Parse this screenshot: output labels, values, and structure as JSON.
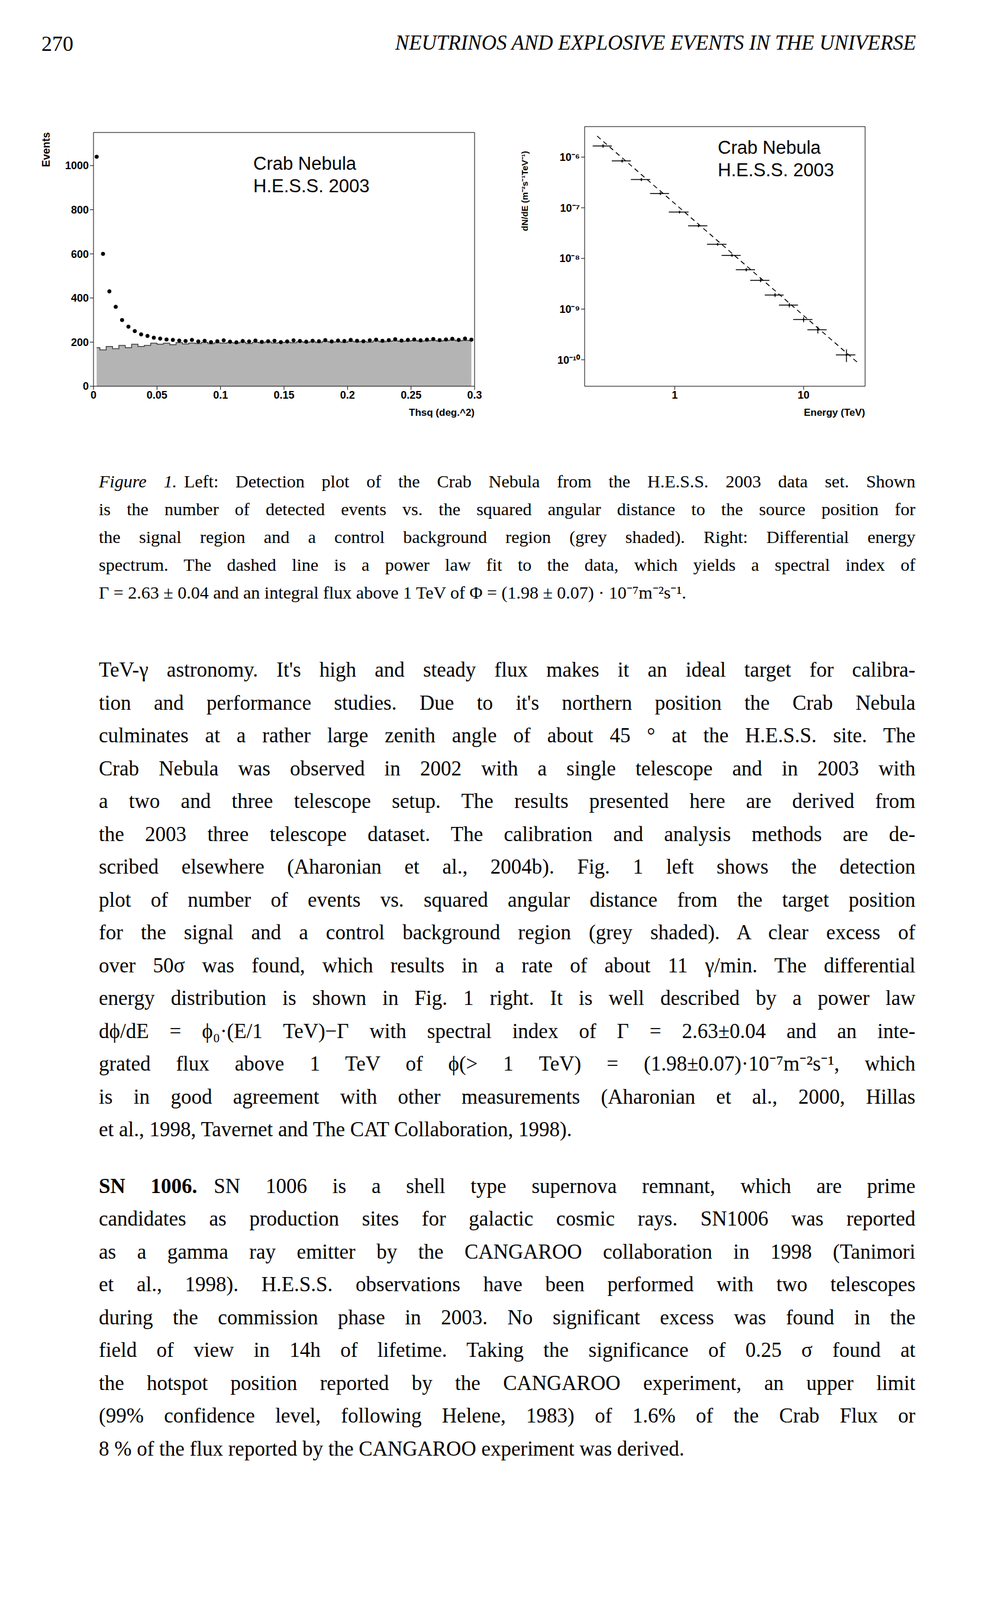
{
  "header": {
    "page": "270",
    "title": "NEUTRINOS AND EXPLOSIVE EVENTS IN THE UNIVERSE"
  },
  "chart_data": [
    {
      "type": "scatter",
      "title": "Crab Nebula",
      "subtitle": "H.E.S.S. 2003",
      "x_label": "Thsq (deg.^2)",
      "y_label": "Events",
      "x": [
        0.0025,
        0.0075,
        0.0125,
        0.0175,
        0.0225,
        0.0275,
        0.0325,
        0.0375,
        0.0425,
        0.0475,
        0.0525,
        0.0575,
        0.0625,
        0.0675,
        0.0725,
        0.0775,
        0.0825,
        0.0875,
        0.0925,
        0.0975,
        0.1025,
        0.1075,
        0.1125,
        0.1175,
        0.1225,
        0.1275,
        0.1325,
        0.1375,
        0.1425,
        0.1475,
        0.1525,
        0.1575,
        0.1625,
        0.1675,
        0.1725,
        0.1775,
        0.1825,
        0.1875,
        0.1925,
        0.1975,
        0.2025,
        0.2075,
        0.2125,
        0.2175,
        0.2225,
        0.2275,
        0.2325,
        0.2375,
        0.2425,
        0.2475,
        0.2525,
        0.2575,
        0.2625,
        0.2675,
        0.2725,
        0.2775,
        0.2825,
        0.2875,
        0.2925,
        0.2975
      ],
      "series": [
        {
          "type": "scatter",
          "marker": "circle",
          "color": "#000000",
          "values": [
            1040,
            600,
            430,
            360,
            300,
            270,
            250,
            235,
            228,
            220,
            216,
            212,
            210,
            207,
            205,
            210,
            203,
            206,
            200,
            204,
            208,
            202,
            199,
            205,
            203,
            207,
            201,
            204,
            206,
            200,
            203,
            208,
            205,
            202,
            206,
            204,
            209,
            203,
            207,
            205,
            210,
            206,
            204,
            208,
            211,
            206,
            209,
            213,
            207,
            210,
            212,
            208,
            211,
            214,
            209,
            212,
            215,
            210,
            216,
            211
          ]
        },
        {
          "type": "area",
          "line_style": "step",
          "color": "#b4b4b4",
          "values": [
            175,
            165,
            180,
            170,
            185,
            175,
            190,
            180,
            185,
            195,
            190,
            195,
            188,
            198,
            192,
            196,
            194,
            199,
            193,
            197,
            195,
            198,
            196,
            200,
            194,
            199,
            197,
            201,
            196,
            198,
            200,
            197,
            202,
            199,
            201,
            198,
            203,
            200,
            202,
            199,
            204,
            201,
            203,
            200,
            205,
            202,
            204,
            206,
            203,
            205,
            207,
            204,
            206,
            208,
            205,
            207,
            209,
            206,
            208,
            207
          ]
        }
      ],
      "xlim": [
        0,
        0.3
      ],
      "xticks": [
        0,
        0.05,
        0.1,
        0.15,
        0.2,
        0.25,
        0.3
      ],
      "ylim": [
        0,
        1150
      ],
      "yticks": [
        0,
        200,
        400,
        600,
        800,
        1000
      ]
    },
    {
      "type": "scatter",
      "log": true,
      "title": "Crab Nebula",
      "subtitle": "H.E.S.S. 2003",
      "x_label": "Energy (TeV)",
      "y_label": "dN/dE (m⁻²s⁻¹TeV⁻¹)",
      "x": [
        0.278,
        0.391,
        0.551,
        0.774,
        1.09,
        1.53,
        2.15,
        2.78,
        3.59,
        4.64,
        6.0,
        7.74,
        10.0,
        12.9,
        21.5
      ],
      "series": [
        {
          "type": "scatter",
          "marker": "cross",
          "color": "#000000",
          "values": [
            1.66e-06,
            8.4e-07,
            3.6e-07,
            1.9e-07,
            8.2e-08,
            4.4e-08,
            1.9e-08,
            1.15e-08,
            6e-09,
            3.7e-09,
            1.9e-09,
            1.2e-09,
            6.2e-10,
            3.9e-10,
            1.25e-10
          ],
          "x_err": [
            0.047,
            0.066,
            0.094,
            0.13,
            0.19,
            0.26,
            0.37,
            0.47,
            0.61,
            0.79,
            1.0,
            1.3,
            1.7,
            2.2,
            3.7
          ],
          "y_err": [
            1.3e-07,
            6e-08,
            2.5e-08,
            1.2e-08,
            5e-09,
            2.8e-09,
            1.2e-09,
            8e-10,
            4.5e-10,
            3e-10,
            1.7e-10,
            1.2e-10,
            7e-11,
            6e-11,
            3.5e-11
          ]
        },
        {
          "type": "line",
          "line_style": "dashed",
          "color": "#000000",
          "x": [
            0.25,
            26
          ],
          "values": [
            2.6e-06,
            9e-11
          ]
        }
      ],
      "xlim": [
        0.2,
        30
      ],
      "xticks": [
        1,
        10
      ],
      "ylim": [
        3e-11,
        4e-06
      ],
      "yticks": [
        {
          "value": 1e-06,
          "label": "10⁻⁶"
        },
        {
          "value": 1e-07,
          "label": "10⁻⁷"
        },
        {
          "value": 1e-08,
          "label": "10⁻⁸"
        },
        {
          "value": 1e-09,
          "label": "10⁻⁹"
        },
        {
          "value": 1e-10,
          "label": "10⁻¹⁰"
        }
      ]
    }
  ],
  "caption": {
    "label": "Figure 1.",
    "lines": [
      "Left: Detection plot of the Crab Nebula from the H.E.S.S. 2003 data set. Shown",
      "is the number of detected events vs. the squared angular distance to the source position for",
      "the signal region and a control background region (grey shaded). Right: Differential energy",
      "spectrum. The dashed line is a power law fit to the data, which yields a spectral index of",
      "Γ = 2.63 ± 0.04 and an integral flux above 1 TeV of Φ = (1.98 ± 0.07) · 10⁻⁷m⁻²s⁻¹."
    ]
  },
  "body": [
    {
      "lines": [
        "TeV-γ astronomy. It's high and steady flux makes it an ideal target for calibra-",
        "tion and performance studies. Due to it's northern position the Crab Nebula",
        "culminates at a rather large zenith angle of about 45 ° at the H.E.S.S. site. The",
        "Crab Nebula was observed in 2002 with a single telescope and in 2003 with",
        "a two and three telescope setup. The results presented here are derived from",
        "the 2003 three telescope dataset. The calibration and analysis methods are de-",
        "scribed elsewhere (Aharonian et al., 2004b). Fig. 1 left shows the detection",
        "plot of number of events vs. squared angular distance from the target position",
        "for the signal and a control background region (grey shaded). A clear excess of",
        "over 50σ was found, which results in a rate of about 11 γ/min. The differential",
        "energy distribution is shown in Fig. 1 right. It is well described by a power law",
        "dϕ/dE = ϕ₀·(E/1 TeV)−Γ with spectral index of Γ = 2.63±0.04 and an inte-",
        "grated flux above 1 TeV of ϕ(> 1 TeV) = (1.98±0.07)·10⁻⁷m⁻²s⁻¹, which",
        "is in good agreement with other measurements (Aharonian et al., 2000, Hillas",
        "et al., 1998, Tavernet and The CAT Collaboration, 1998)."
      ]
    },
    {
      "heading": "SN 1006.",
      "lines": [
        "SN 1006 is a shell type supernova remnant, which are prime",
        "candidates as production sites for galactic cosmic rays. SN1006 was reported",
        "as a gamma ray emitter by the CANGAROO collaboration in 1998 (Tanimori",
        "et al., 1998). H.E.S.S. observations have been performed with two telescopes",
        "during the commission phase in 2003. No significant excess was found in the",
        "field of view in 14h of lifetime. Taking the significance of 0.25 σ found at",
        "the hotspot position reported by the CANGAROO experiment, an upper limit",
        "(99% confidence level, following Helene, 1983) of 1.6% of the Crab Flux or",
        "8 % of the flux reported by the CANGAROO experiment was derived."
      ]
    }
  ]
}
